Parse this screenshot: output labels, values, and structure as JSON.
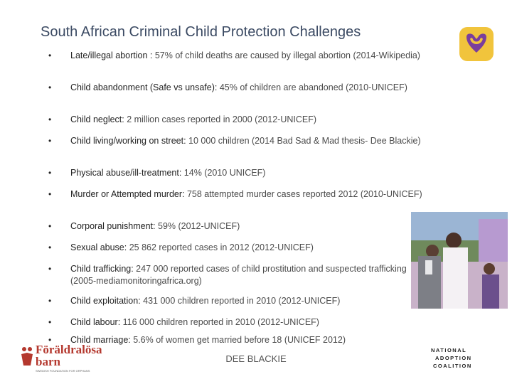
{
  "slide": {
    "title": "South African Criminal Child Protection Challenges",
    "bullet_char": "•",
    "items": [
      {
        "label": "Late/illegal abortion :",
        "value": " 57% of child deaths are caused by illegal abortion (2014-Wikipedia)"
      },
      {
        "label": "Child abandonment (Safe vs unsafe): ",
        "value": " 45% of children are abandoned (2010-UNICEF)"
      },
      {
        "label": "Child neglect:",
        "value": " 2 million cases reported in 2000 (2012-UNICEF)"
      },
      {
        "label": "Child living/working on street:",
        "value": " 10 000 children (2014 Bad Sad & Mad thesis- Dee Blackie)"
      },
      {
        "label": "Physical abuse/ill-treatment:",
        "value": " 14% (2010 UNICEF)"
      },
      {
        "label": "Murder or Attempted murder:",
        "value": " 758 attempted murder cases reported 2012 (2010-UNICEF)"
      },
      {
        "label": "Corporal punishment:",
        "value": " 59% (2012-UNICEF)"
      },
      {
        "label": "Sexual abuse:",
        "value": " 25 862 reported cases in 2012 (2012-UNICEF)"
      },
      {
        "label": "Child trafficking:",
        "value": " 247 000 reported cases of child prostitution and suspected trafficking (2005-mediamonitoringafrica.org)"
      },
      {
        "label": "Child exploitation:",
        "value": " 431 000 children reported in 2010 (2012-UNICEF)"
      },
      {
        "label": "Child labour:",
        "value": " 116 000 children reported in 2010 (2012-UNICEF)"
      },
      {
        "label": "Child marriage:",
        "value": " 5.6% of women get married before 18 (UNICEF 2012)"
      }
    ],
    "footer": "DEE BLACKIE"
  },
  "logos": {
    "left_line1": "Föräldralösa",
    "left_line2": "barn",
    "left_sub": "SWEDISH FOUNDATION FOR ORPHANS",
    "right_lines": [
      "NATIONAL",
      "ADOPTION",
      "COALITION"
    ],
    "heart_colors": {
      "background": "#f1c43c",
      "heart": "#7a3e9d"
    }
  },
  "photo": {
    "icon": "wedding-photo"
  }
}
